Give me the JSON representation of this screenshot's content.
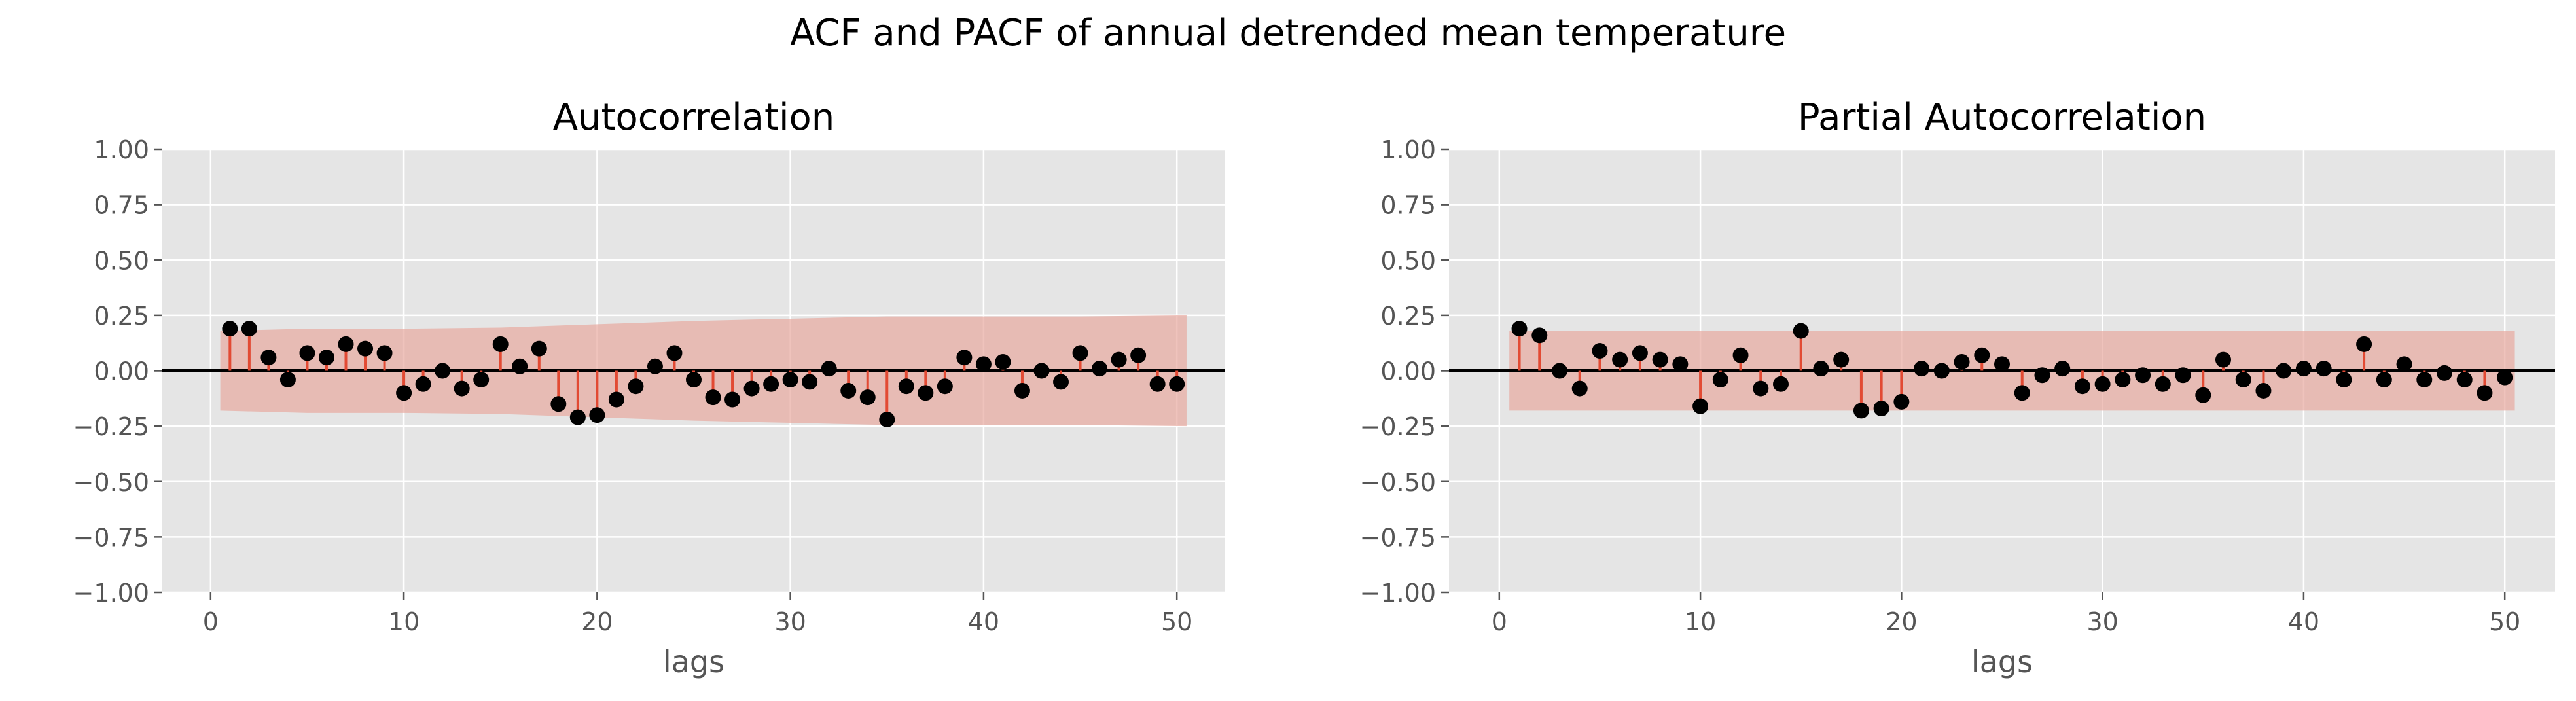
{
  "figure": {
    "suptitle": "ACF and PACF of annual detrended mean temperature"
  },
  "colors": {
    "panel_bg": "#E5E5E5",
    "grid": "#FFFFFF",
    "stem": "#E24A33",
    "marker": "#000000",
    "band": "#E8A9A0",
    "zero_line": "#000000",
    "tick_text": "#555555",
    "title_text": "#000000"
  },
  "chart_data": [
    {
      "type": "stem",
      "title": "Autocorrelation",
      "xlabel": "lags",
      "ylabel": "",
      "xlim": [
        -2.5,
        52.5
      ],
      "ylim": [
        -1.0,
        1.0
      ],
      "xticks": [
        0,
        10,
        20,
        30,
        40,
        50
      ],
      "yticks": [
        -1.0,
        -0.75,
        -0.5,
        -0.25,
        0.0,
        0.25,
        0.5,
        0.75,
        1.0
      ],
      "ytick_labels": [
        "−1.00",
        "−0.75",
        "−0.50",
        "−0.25",
        "0.00",
        "0.25",
        "0.50",
        "0.75",
        "1.00"
      ],
      "grid": true,
      "lags": [
        1,
        2,
        3,
        4,
        5,
        6,
        7,
        8,
        9,
        10,
        11,
        12,
        13,
        14,
        15,
        16,
        17,
        18,
        19,
        20,
        21,
        22,
        23,
        24,
        25,
        26,
        27,
        28,
        29,
        30,
        31,
        32,
        33,
        34,
        35,
        36,
        37,
        38,
        39,
        40,
        41,
        42,
        43,
        44,
        45,
        46,
        47,
        48,
        49,
        50
      ],
      "values": [
        0.19,
        0.19,
        0.06,
        -0.04,
        0.08,
        0.06,
        0.12,
        0.1,
        0.08,
        -0.1,
        -0.06,
        0.0,
        -0.08,
        -0.04,
        0.12,
        0.02,
        0.1,
        -0.15,
        -0.21,
        -0.2,
        -0.13,
        -0.07,
        0.02,
        0.08,
        -0.04,
        -0.12,
        -0.13,
        -0.08,
        -0.06,
        -0.04,
        -0.05,
        0.01,
        -0.09,
        -0.12,
        -0.22,
        -0.07,
        -0.1,
        -0.07,
        0.06,
        0.03,
        0.04,
        -0.09,
        0.0,
        -0.05,
        0.08,
        0.01,
        0.05,
        0.07,
        -0.06,
        -0.06
      ],
      "confidence_band": {
        "x": [
          0.5,
          5,
          10,
          15,
          20,
          25,
          30,
          35,
          40,
          45,
          50.5
        ],
        "upper": [
          0.18,
          0.19,
          0.19,
          0.195,
          0.21,
          0.225,
          0.235,
          0.245,
          0.245,
          0.245,
          0.25
        ],
        "lower": [
          -0.18,
          -0.19,
          -0.19,
          -0.195,
          -0.21,
          -0.225,
          -0.235,
          -0.245,
          -0.245,
          -0.245,
          -0.25
        ]
      }
    },
    {
      "type": "stem",
      "title": "Partial Autocorrelation",
      "xlabel": "lags",
      "ylabel": "",
      "xlim": [
        -2.5,
        52.5
      ],
      "ylim": [
        -1.0,
        1.0
      ],
      "xticks": [
        0,
        10,
        20,
        30,
        40,
        50
      ],
      "yticks": [
        -1.0,
        -0.75,
        -0.5,
        -0.25,
        0.0,
        0.25,
        0.5,
        0.75,
        1.0
      ],
      "ytick_labels": [
        "−1.00",
        "−0.75",
        "−0.50",
        "−0.25",
        "0.00",
        "0.25",
        "0.50",
        "0.75",
        "1.00"
      ],
      "grid": true,
      "lags": [
        1,
        2,
        3,
        4,
        5,
        6,
        7,
        8,
        9,
        10,
        11,
        12,
        13,
        14,
        15,
        16,
        17,
        18,
        19,
        20,
        21,
        22,
        23,
        24,
        25,
        26,
        27,
        28,
        29,
        30,
        31,
        32,
        33,
        34,
        35,
        36,
        37,
        38,
        39,
        40,
        41,
        42,
        43,
        44,
        45,
        46,
        47,
        48,
        49,
        50
      ],
      "values": [
        0.19,
        0.16,
        0.0,
        -0.08,
        0.09,
        0.05,
        0.08,
        0.05,
        0.03,
        -0.16,
        -0.04,
        0.07,
        -0.08,
        -0.06,
        0.18,
        0.01,
        0.05,
        -0.18,
        -0.17,
        -0.14,
        0.01,
        0.0,
        0.04,
        0.07,
        0.03,
        -0.1,
        -0.02,
        0.01,
        -0.07,
        -0.06,
        -0.04,
        -0.02,
        -0.06,
        -0.02,
        -0.11,
        0.05,
        -0.04,
        -0.09,
        0.0,
        0.01,
        0.01,
        -0.04,
        0.12,
        -0.04,
        0.03,
        -0.04,
        -0.01,
        -0.04,
        -0.1,
        -0.03
      ],
      "confidence_band": {
        "x": [
          0.5,
          50.5
        ],
        "upper": [
          0.18,
          0.18
        ],
        "lower": [
          -0.18,
          -0.18
        ]
      }
    }
  ]
}
